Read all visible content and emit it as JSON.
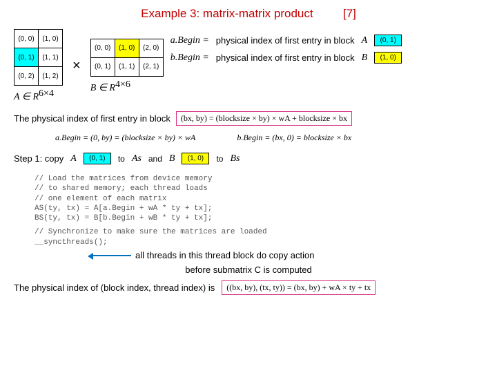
{
  "title": "Example 3: matrix-matrix product",
  "ref": "[7]",
  "matrixA": {
    "rows": [
      [
        {
          "v": "(0, 0)",
          "c": ""
        },
        {
          "v": "(1, 0)",
          "c": ""
        }
      ],
      [
        {
          "v": "(0, 1)",
          "c": "cyan"
        },
        {
          "v": "(1, 1)",
          "c": ""
        }
      ],
      [
        {
          "v": "(0, 2)",
          "c": ""
        },
        {
          "v": "(1, 2)",
          "c": ""
        }
      ]
    ],
    "label": "A ∈ R",
    "dim": "6×4"
  },
  "matrixB": {
    "rows": [
      [
        {
          "v": "(0, 0)",
          "c": ""
        },
        {
          "v": "(1, 0)",
          "c": "yellow"
        },
        {
          "v": "(2, 0)",
          "c": ""
        }
      ],
      [
        {
          "v": "(0, 1)",
          "c": ""
        },
        {
          "v": "(1, 1)",
          "c": ""
        },
        {
          "v": "(2, 1)",
          "c": ""
        }
      ]
    ],
    "label": "B ∈ R",
    "dim": "4×6"
  },
  "phys1": {
    "prefix": "a.Begin =",
    "text": "physical index of first entry in block",
    "sym": "A",
    "box": "(0, 1)",
    "boxColor": "cyan"
  },
  "phys2": {
    "prefix": "b.Begin =",
    "text": "physical index of first entry in block",
    "sym": "B",
    "box": "(1, 0)",
    "boxColor": "yellow"
  },
  "line3": {
    "text": "The physical index of first entry in block",
    "formula": "(bx, by) = (blocksize × by) × wA + blocksize × bx"
  },
  "formulas": {
    "aBegin": "a.Begin = (0, by) = (blocksize × by) × wA",
    "bBegin": "b.Begin = (bx, 0) = blocksize × bx"
  },
  "step1": {
    "label": "Step 1: copy",
    "sym1": "A",
    "box1": "(0, 1)",
    "box1Color": "cyan",
    "to1": "to",
    "dest1": "As",
    "and": "and",
    "sym2": "B",
    "box2": "(1, 0)",
    "box2Color": "yellow",
    "to2": "to",
    "dest2": "Bs"
  },
  "code1": "// Load the matrices from device memory\n// to shared memory; each thread loads\n// one element of each matrix\nAS(ty, tx) = A[a.Begin + wA * ty + tx];\nBS(ty, tx) = B[b.Begin + wB * ty + tx];",
  "code2": "// Synchronize to make sure the matrices are loaded\n__syncthreads();",
  "arrowText": "all threads in this thread block do copy action",
  "beforeText": "before submatrix C is computed",
  "bottomText": "The physical index of (block index, thread index) is",
  "bottomFormula": "((bx, by), (tx, ty)) = (bx, by) + wA × ty + tx",
  "colors": {
    "cyan": "#00ffff",
    "yellow": "#ffff00",
    "titleColor": "#c00000",
    "boxBorder": "#d63384",
    "arrow": "#0070c0"
  }
}
